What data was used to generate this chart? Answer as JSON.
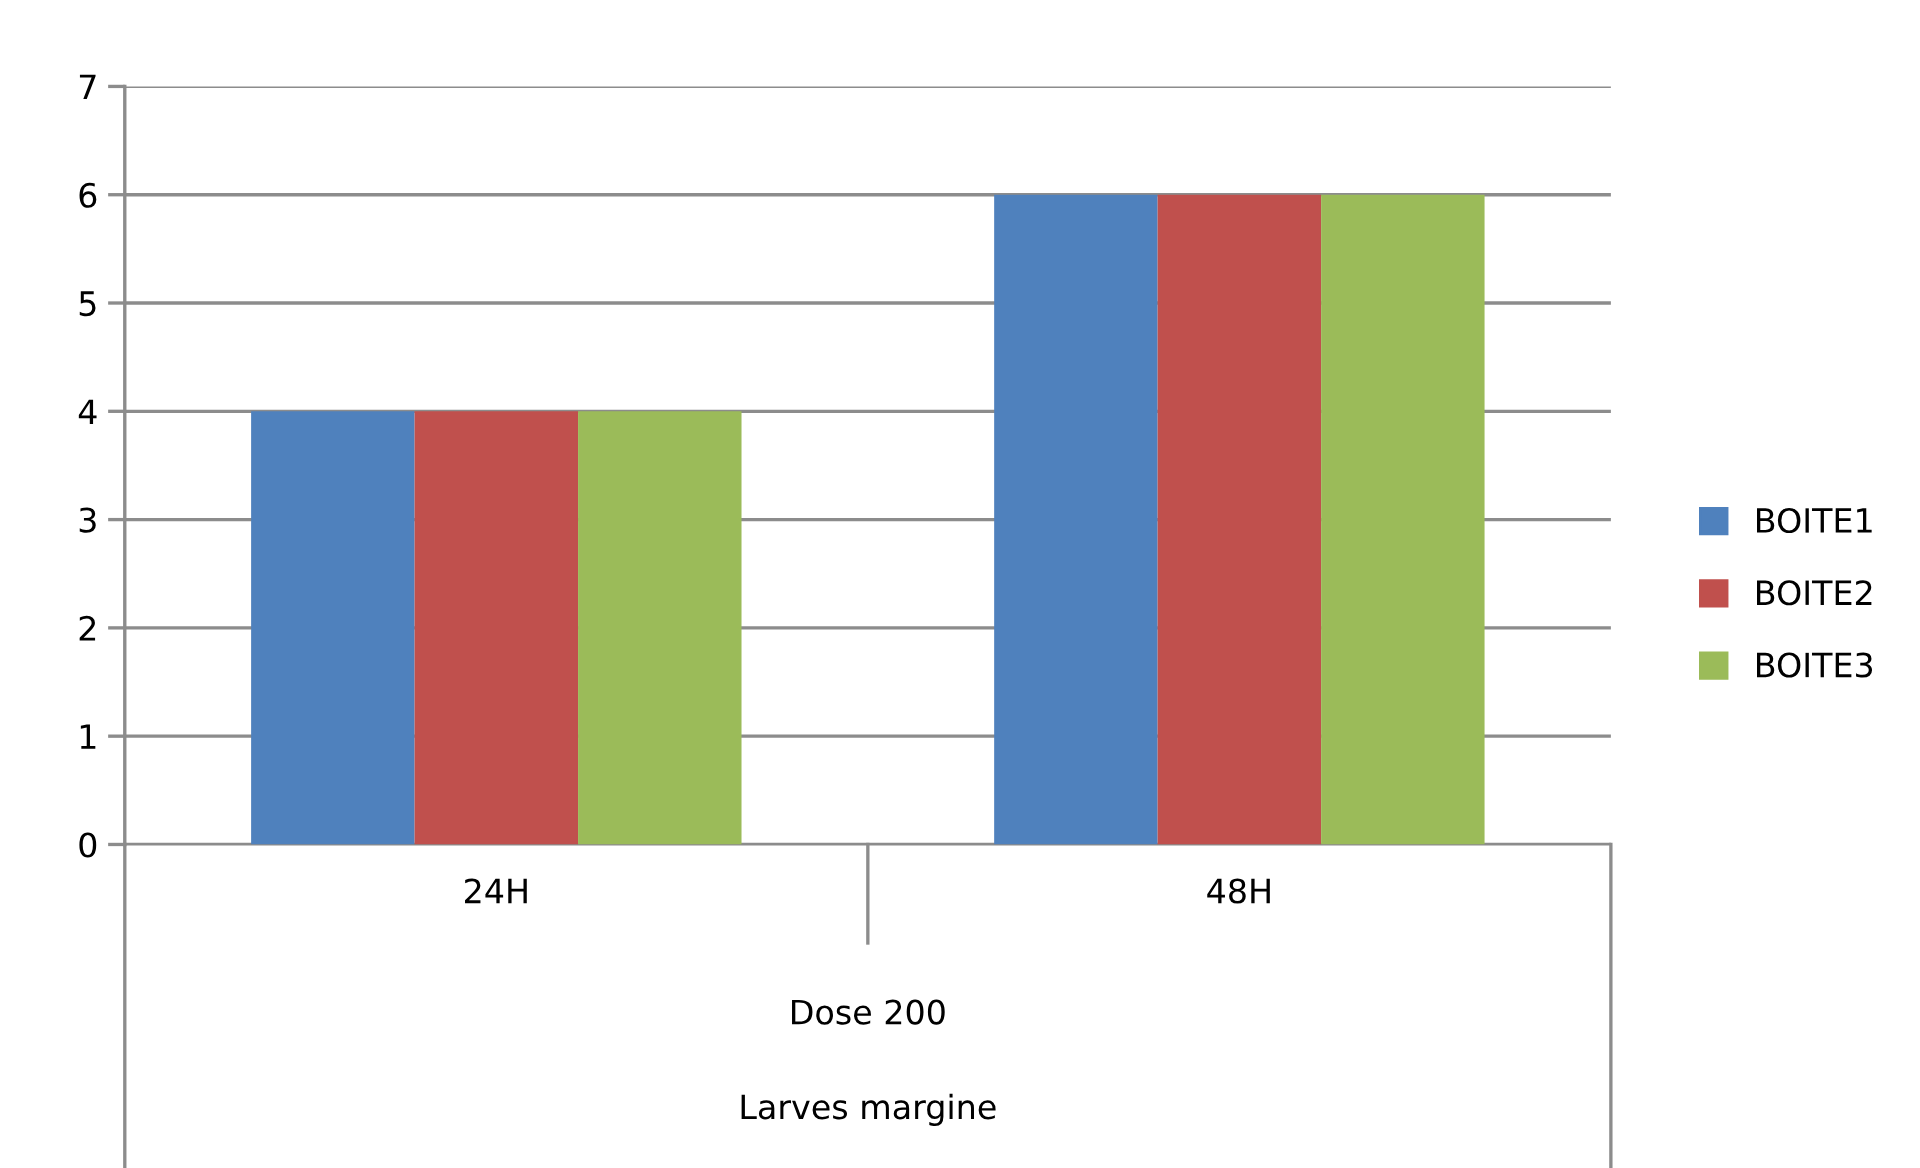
{
  "chart_data": {
    "type": "bar",
    "categories": [
      "24H",
      "48H"
    ],
    "series": [
      {
        "name": "BOITE1",
        "color": "#4f81bd",
        "values": [
          4,
          6
        ]
      },
      {
        "name": "BOITE2",
        "color": "#c0504d",
        "values": [
          4,
          6
        ]
      },
      {
        "name": "BOITE3",
        "color": "#9bbb59",
        "values": [
          4,
          6
        ]
      }
    ],
    "annotations": [
      "Dose 200",
      "Larves margine"
    ],
    "ylim": [
      0,
      7
    ],
    "yticks": [
      0,
      1,
      2,
      3,
      4,
      5,
      6,
      7
    ],
    "grid": "y",
    "legend": "right"
  }
}
